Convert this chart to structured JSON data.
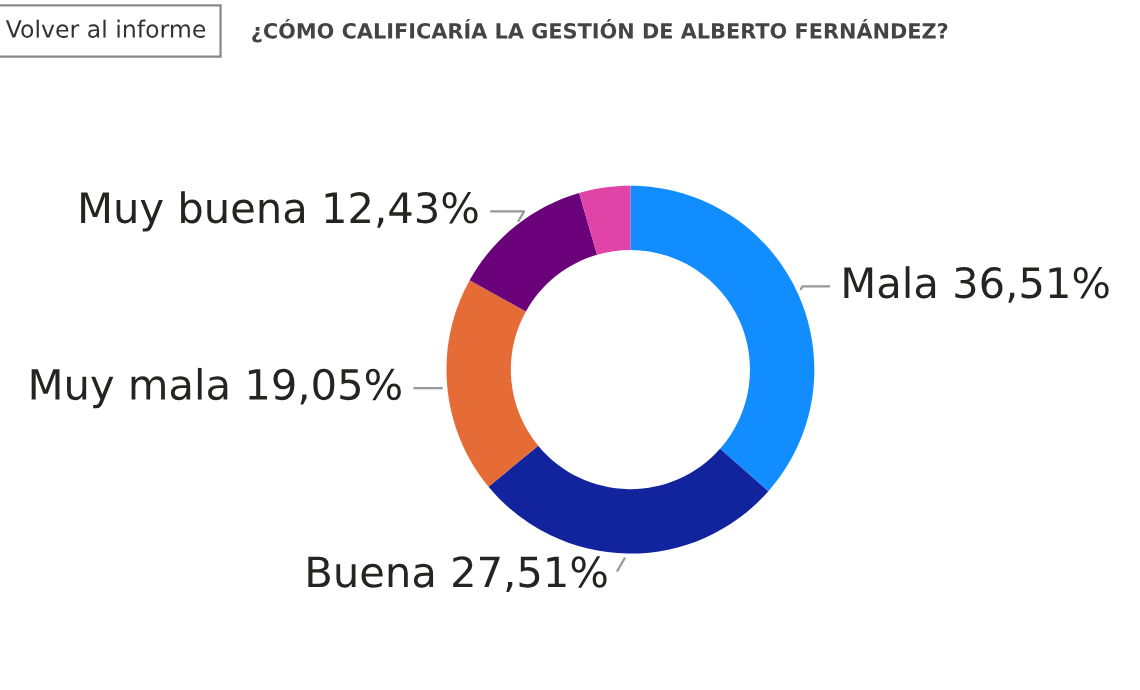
{
  "chart_data": {
    "type": "donut",
    "title": "¿CÓMO CALIFICARÍA LA GESTIÓN DE ALBERTO FERNÁNDEZ?",
    "annotations": [
      "Volver al informe"
    ],
    "categories": [
      "Mala",
      "Buena",
      "Muy mala",
      "Muy buena",
      null
    ],
    "values": [
      36.51,
      27.51,
      19.05,
      12.43,
      4.5
    ],
    "value_labels": [
      "36,51%",
      "27,51%",
      "19,05%",
      "12,43%",
      null
    ],
    "colors": [
      "#118dff",
      "#12239e",
      "#e66c37",
      "#6b007b",
      "#e044a7"
    ],
    "legend": false
  }
}
